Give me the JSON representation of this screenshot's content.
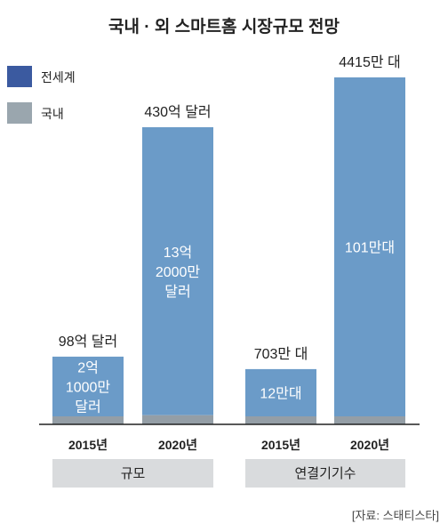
{
  "chart_data": {
    "type": "bar",
    "title": "국내 · 외 스마트홈 시장규모 전망",
    "legend": [
      {
        "name": "전세계",
        "color": "#3b5aa0"
      },
      {
        "name": "국내",
        "color": "#9aa6ae"
      }
    ],
    "colors": {
      "world": "#6b9bc8",
      "domestic": "#949ea6",
      "group_bg": "#d9dbdd"
    },
    "groups": [
      {
        "label": "규모",
        "bars": [
          {
            "x": "2015년",
            "total": 98,
            "domestic": 2.1,
            "top_label": "98억 달러",
            "inner_lines": [
              "2억",
              "1000만",
              "달러"
            ]
          },
          {
            "x": "2020년",
            "total": 430,
            "domestic": 13.2,
            "top_label": "430억 달러",
            "inner_lines": [
              "13억",
              "2000만",
              "달러"
            ]
          }
        ]
      },
      {
        "label": "연결기기수",
        "bars": [
          {
            "x": "2015년",
            "total": 703,
            "domestic": 12,
            "top_label": "703만 대",
            "inner_lines": [
              "12만대"
            ]
          },
          {
            "x": "2020년",
            "total": 4415,
            "domestic": 101,
            "top_label": "4415만 대",
            "inner_lines": [
              "101만대"
            ]
          }
        ]
      }
    ],
    "source": "[자료: 스태티스타]"
  }
}
